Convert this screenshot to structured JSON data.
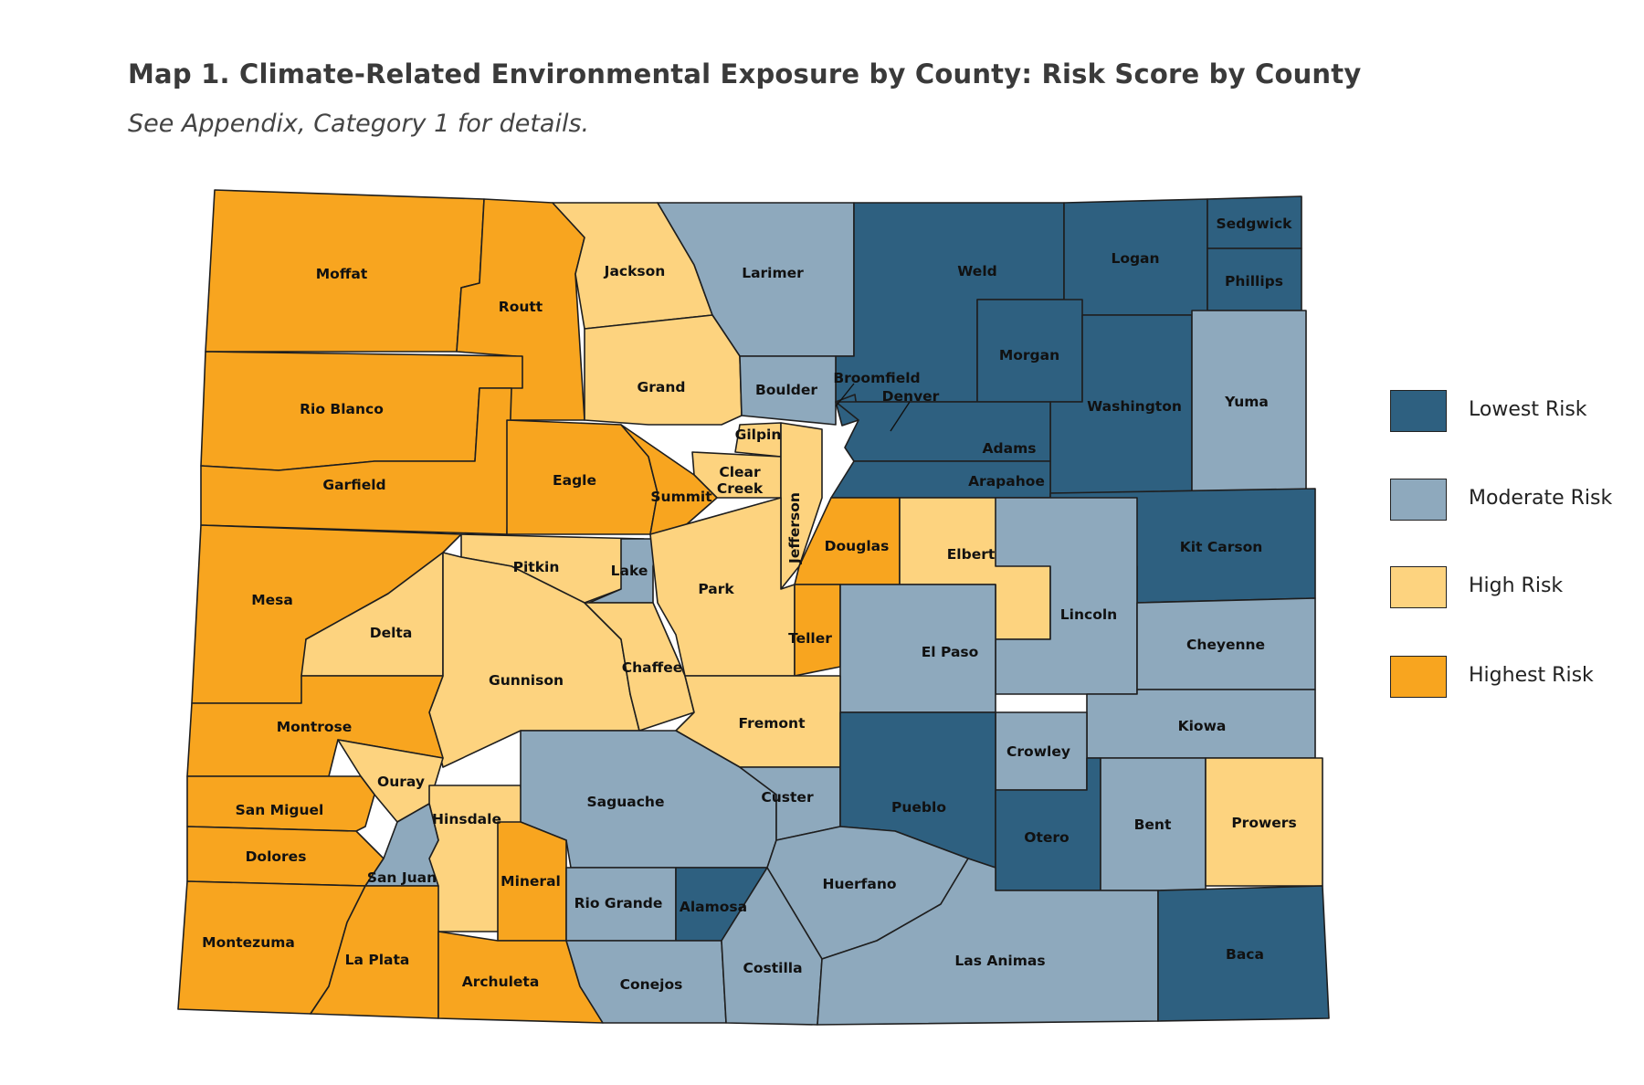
{
  "title": "Map 1.  Climate-Related Environmental Exposure by County: Risk Score by County",
  "subtitle": "See Appendix, Category 1 for details.",
  "risk_colors": {
    "lowest": "#2e6080",
    "moderate": "#8ea9bd",
    "high": "#fdd37f",
    "highest": "#f8a51f"
  },
  "legend": [
    {
      "key": "lowest",
      "label": "Lowest Risk"
    },
    {
      "key": "moderate",
      "label": "Moderate Risk"
    },
    {
      "key": "high",
      "label": "High Risk"
    },
    {
      "key": "highest",
      "label": "Highest Risk"
    }
  ],
  "counties": [
    {
      "name": "Moffat",
      "risk": "highest"
    },
    {
      "name": "Routt",
      "risk": "highest"
    },
    {
      "name": "Jackson",
      "risk": "high"
    },
    {
      "name": "Larimer",
      "risk": "moderate"
    },
    {
      "name": "Weld",
      "risk": "lowest"
    },
    {
      "name": "Logan",
      "risk": "lowest"
    },
    {
      "name": "Sedgwick",
      "risk": "lowest"
    },
    {
      "name": "Phillips",
      "risk": "lowest"
    },
    {
      "name": "Rio Blanco",
      "risk": "highest"
    },
    {
      "name": "Grand",
      "risk": "high"
    },
    {
      "name": "Boulder",
      "risk": "moderate"
    },
    {
      "name": "Broomfield",
      "risk": "lowest"
    },
    {
      "name": "Morgan",
      "risk": "lowest"
    },
    {
      "name": "Washington",
      "risk": "lowest"
    },
    {
      "name": "Yuma",
      "risk": "moderate"
    },
    {
      "name": "Denver",
      "risk": "lowest"
    },
    {
      "name": "Adams",
      "risk": "lowest"
    },
    {
      "name": "Arapahoe",
      "risk": "lowest"
    },
    {
      "name": "Gilpin",
      "risk": "high"
    },
    {
      "name": "Clear Creek",
      "risk": "high"
    },
    {
      "name": "Garfield",
      "risk": "highest"
    },
    {
      "name": "Eagle",
      "risk": "highest"
    },
    {
      "name": "Summit",
      "risk": "highest"
    },
    {
      "name": "Jefferson",
      "risk": "high"
    },
    {
      "name": "Douglas",
      "risk": "highest"
    },
    {
      "name": "Elbert",
      "risk": "high"
    },
    {
      "name": "Kit Carson",
      "risk": "lowest"
    },
    {
      "name": "Mesa",
      "risk": "highest"
    },
    {
      "name": "Pitkin",
      "risk": "high"
    },
    {
      "name": "Lake",
      "risk": "moderate"
    },
    {
      "name": "Park",
      "risk": "high"
    },
    {
      "name": "Lincoln",
      "risk": "moderate"
    },
    {
      "name": "Delta",
      "risk": "high"
    },
    {
      "name": "Teller",
      "risk": "highest"
    },
    {
      "name": "El Paso",
      "risk": "moderate"
    },
    {
      "name": "Cheyenne",
      "risk": "moderate"
    },
    {
      "name": "Gunnison",
      "risk": "high"
    },
    {
      "name": "Chaffee",
      "risk": "high"
    },
    {
      "name": "Montrose",
      "risk": "highest"
    },
    {
      "name": "Fremont",
      "risk": "high"
    },
    {
      "name": "Kiowa",
      "risk": "moderate"
    },
    {
      "name": "Crowley",
      "risk": "moderate"
    },
    {
      "name": "Ouray",
      "risk": "high"
    },
    {
      "name": "San Miguel",
      "risk": "highest"
    },
    {
      "name": "Hinsdale",
      "risk": "high"
    },
    {
      "name": "Saguache",
      "risk": "moderate"
    },
    {
      "name": "Custer",
      "risk": "moderate"
    },
    {
      "name": "Pueblo",
      "risk": "lowest"
    },
    {
      "name": "Otero",
      "risk": "lowest"
    },
    {
      "name": "Bent",
      "risk": "moderate"
    },
    {
      "name": "Prowers",
      "risk": "high"
    },
    {
      "name": "Dolores",
      "risk": "highest"
    },
    {
      "name": "San Juan",
      "risk": "moderate"
    },
    {
      "name": "Mineral",
      "risk": "highest"
    },
    {
      "name": "Rio Grande",
      "risk": "moderate"
    },
    {
      "name": "Alamosa",
      "risk": "lowest"
    },
    {
      "name": "Huerfano",
      "risk": "moderate"
    },
    {
      "name": "Montezuma",
      "risk": "highest"
    },
    {
      "name": "La Plata",
      "risk": "highest"
    },
    {
      "name": "Archuleta",
      "risk": "highest"
    },
    {
      "name": "Conejos",
      "risk": "moderate"
    },
    {
      "name": "Costilla",
      "risk": "moderate"
    },
    {
      "name": "Las Animas",
      "risk": "moderate"
    },
    {
      "name": "Baca",
      "risk": "lowest"
    }
  ]
}
